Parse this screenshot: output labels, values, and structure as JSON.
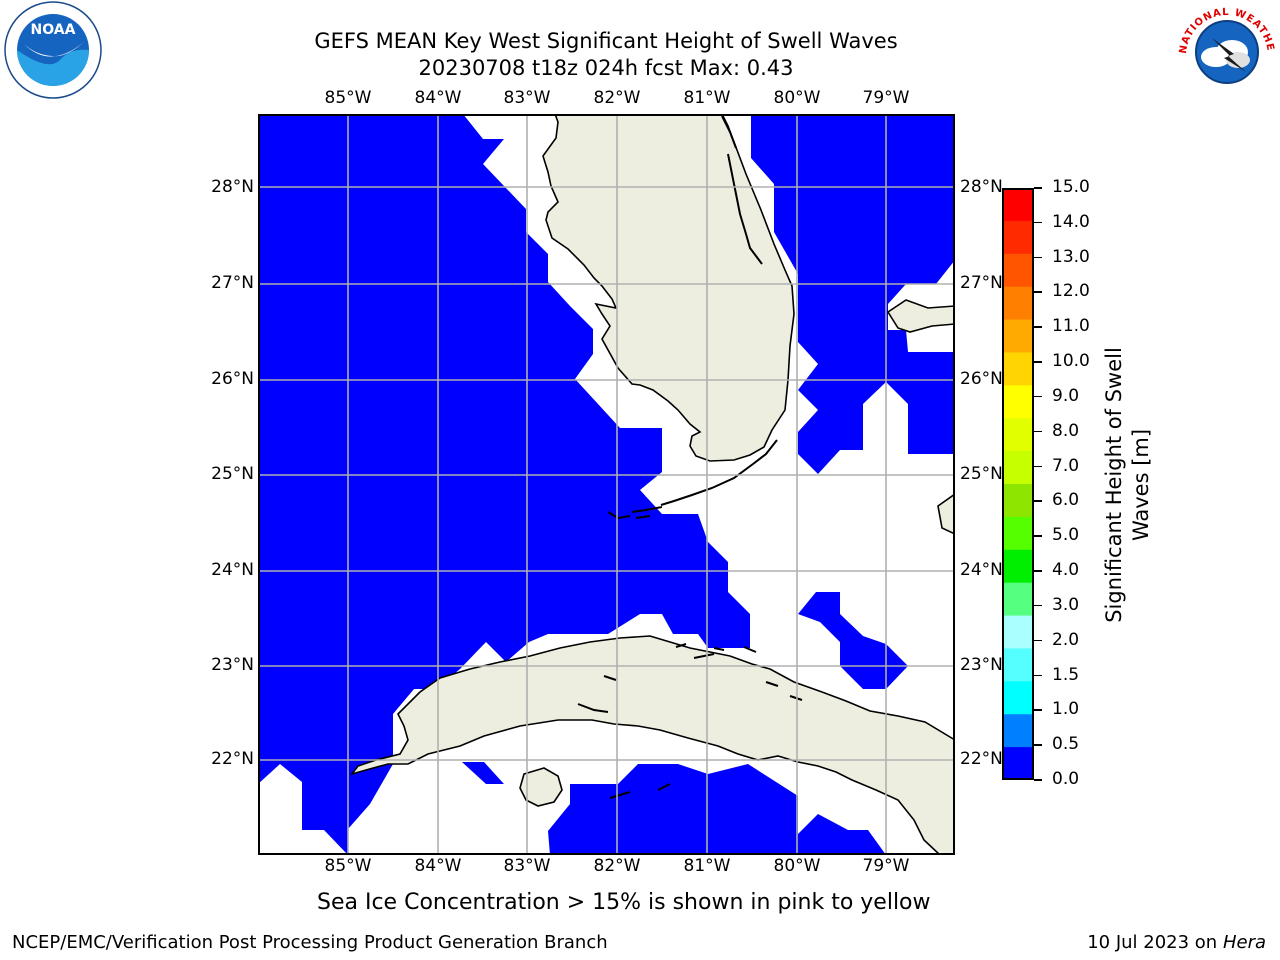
{
  "title_line1": "GEFS MEAN Key West Significant Height of Swell Waves",
  "title_line2": "20230708 t18z 024h fcst   Max: 0.43",
  "lon_labels": [
    "85°W",
    "84°W",
    "83°W",
    "82°W",
    "81°W",
    "80°W",
    "79°W"
  ],
  "lat_labels": [
    "28°N",
    "27°N",
    "26°N",
    "25°N",
    "24°N",
    "23°N",
    "22°N"
  ],
  "colorbar": {
    "label_line1": "Significant Height of Swell",
    "label_line2": "Waves [m]",
    "ticks": [
      "15.0",
      "14.0",
      "13.0",
      "12.0",
      "11.0",
      "10.0",
      "9.0",
      "8.0",
      "7.0",
      "6.0",
      "5.0",
      "4.0",
      "3.0",
      "2.0",
      "1.5",
      "1.0",
      "0.5",
      "0.0"
    ],
    "colors": [
      "#ff0000",
      "#ff2a00",
      "#ff5500",
      "#ff8000",
      "#ffaa00",
      "#ffd400",
      "#ffff00",
      "#e2ff00",
      "#c5ff00",
      "#8ee600",
      "#55ff00",
      "#00ee00",
      "#55ff80",
      "#aaffff",
      "#55ffff",
      "#00ffff",
      "#0080ff",
      "#0000ff"
    ]
  },
  "map_colors": {
    "swell": "#0000ff",
    "land": "#eeeee0",
    "grid": "#b0b0b0",
    "coast": "#000000"
  },
  "sea_ice_note": "Sea Ice Concentration > 15% is shown in pink to yellow",
  "footer_left": "NCEP/EMC/Verification Post Processing Product Generation Branch",
  "footer_right_date": "10 Jul 2023 on ",
  "footer_right_machine": "Hera",
  "logos": {
    "noaa_text": "NOAA",
    "nws_text": "NATIONAL WEATHER SERVICE"
  }
}
